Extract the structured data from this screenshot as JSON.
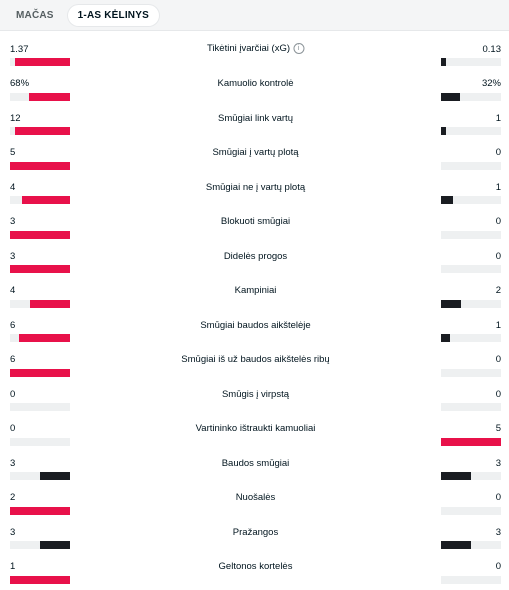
{
  "tabs": [
    {
      "label": "MAČAS",
      "active": false
    },
    {
      "label": "1-AS KĖLINYS",
      "active": true
    }
  ],
  "colors": {
    "leader": "#e8114a",
    "trailer": "#1a1d22",
    "track": "#eef0f1"
  },
  "stats": [
    {
      "label": "Tikėtini įvarčiai (xG)",
      "home": "1.37",
      "away": "0.13",
      "home_val": 1.37,
      "away_val": 0.13,
      "info": true
    },
    {
      "label": "Kamuolio kontrolė",
      "home": "68%",
      "away": "32%",
      "home_val": 68,
      "away_val": 32
    },
    {
      "label": "Smūgiai link vartų",
      "home": "12",
      "away": "1",
      "home_val": 12,
      "away_val": 1
    },
    {
      "label": "Smūgiai į vartų plotą",
      "home": "5",
      "away": "0",
      "home_val": 5,
      "away_val": 0
    },
    {
      "label": "Smūgiai ne į vartų plotą",
      "home": "4",
      "away": "1",
      "home_val": 4,
      "away_val": 1
    },
    {
      "label": "Blokuoti smūgiai",
      "home": "3",
      "away": "0",
      "home_val": 3,
      "away_val": 0
    },
    {
      "label": "Didelės progos",
      "home": "3",
      "away": "0",
      "home_val": 3,
      "away_val": 0
    },
    {
      "label": "Kampiniai",
      "home": "4",
      "away": "2",
      "home_val": 4,
      "away_val": 2
    },
    {
      "label": "Smūgiai baudos aikštelėje",
      "home": "6",
      "away": "1",
      "home_val": 6,
      "away_val": 1
    },
    {
      "label": "Smūgiai iš už baudos aikštelės ribų",
      "home": "6",
      "away": "0",
      "home_val": 6,
      "away_val": 0
    },
    {
      "label": "Smūgis į virpstą",
      "home": "0",
      "away": "0",
      "home_val": 0,
      "away_val": 0
    },
    {
      "label": "Vartininko ištraukti kamuoliai",
      "home": "0",
      "away": "5",
      "home_val": 0,
      "away_val": 5
    },
    {
      "label": "Baudos smūgiai",
      "home": "3",
      "away": "3",
      "home_val": 3,
      "away_val": 3
    },
    {
      "label": "Nuošalės",
      "home": "2",
      "away": "0",
      "home_val": 2,
      "away_val": 0
    },
    {
      "label": "Pražangos",
      "home": "3",
      "away": "3",
      "home_val": 3,
      "away_val": 3
    },
    {
      "label": "Geltonos kortelės",
      "home": "1",
      "away": "0",
      "home_val": 1,
      "away_val": 0
    }
  ]
}
